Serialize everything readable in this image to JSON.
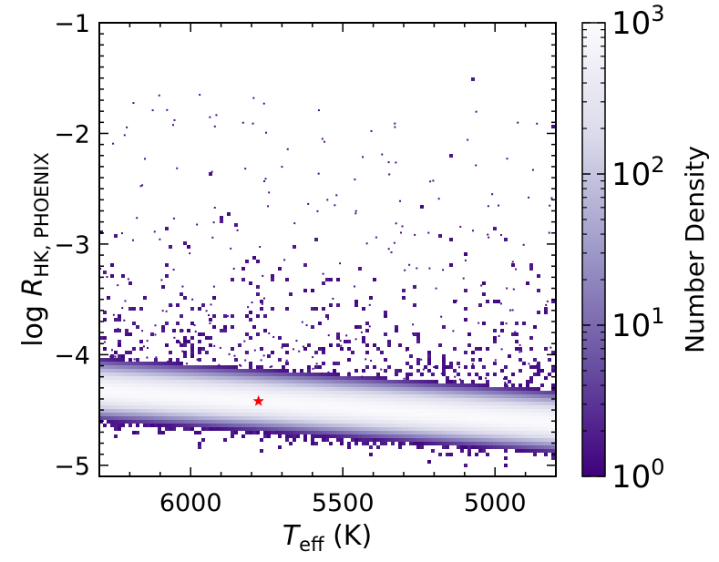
{
  "chart_data": {
    "type": "heatmap",
    "subtype": "2d-density-histogram",
    "x": {
      "label_symbol": "T",
      "label_subscript": "eff",
      "label_unit": " (K)",
      "range": [
        6300,
        4800
      ],
      "inverted": true,
      "ticks": [
        6000,
        5500,
        5000
      ],
      "tick_labels": [
        "6000",
        "5500",
        "5000"
      ]
    },
    "y": {
      "label_prefix": "log ",
      "label_symbol": "R",
      "label_subscript": "HK, PHOENIX",
      "range": [
        -5.1,
        -1.0
      ],
      "ticks": [
        -5,
        -4,
        -3,
        -2,
        -1
      ],
      "tick_labels": [
        "−5",
        "−4",
        "−3",
        "−2",
        "−1"
      ]
    },
    "density_ridge": {
      "points": [
        [
          6300,
          -4.33
        ],
        [
          5800,
          -4.42
        ],
        [
          5300,
          -4.52
        ],
        [
          4800,
          -4.62
        ]
      ],
      "core_halfwidth": 0.12,
      "band_halfwidth": 0.3
    },
    "marker": {
      "symbol": "star",
      "x": 5777,
      "y": -4.42,
      "color": "#ff0000"
    },
    "colorbar": {
      "label": "Number Density",
      "scale": "log",
      "range": [
        1,
        1000
      ],
      "ticks": [
        {
          "base": "10",
          "exp": "0",
          "value": 1
        },
        {
          "base": "10",
          "exp": "1",
          "value": 10
        },
        {
          "base": "10",
          "exp": "2",
          "value": 100
        },
        {
          "base": "10",
          "exp": "3",
          "value": 1000
        }
      ],
      "colors": [
        "#3f007d",
        "#6a51a3",
        "#9e9ac8",
        "#dadaeb",
        "#fcfbfd"
      ]
    },
    "grid": false,
    "legend": "none"
  }
}
